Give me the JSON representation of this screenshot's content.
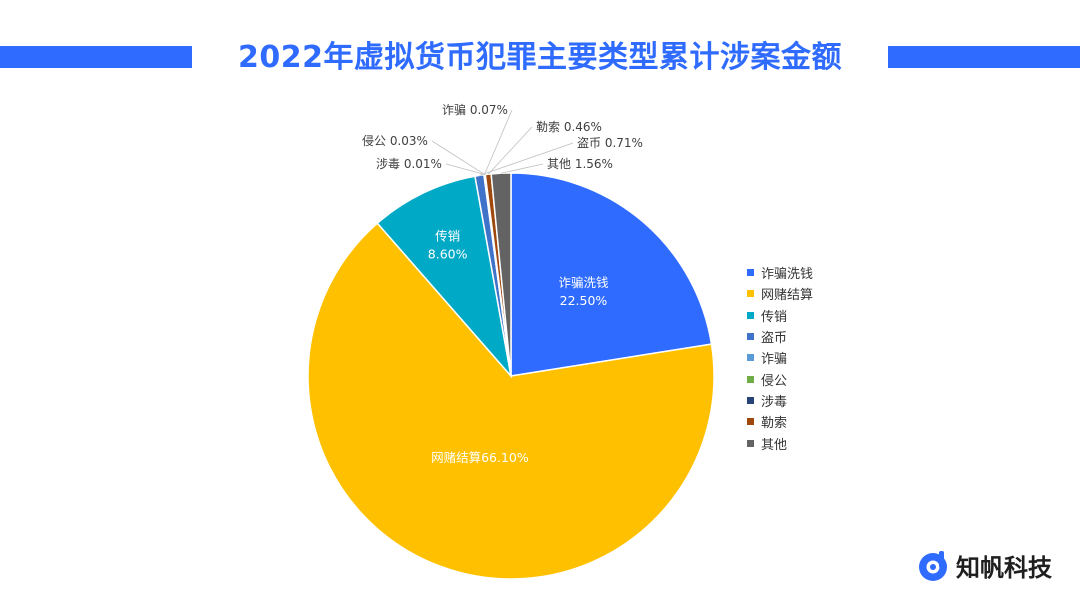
{
  "title": "2022年虚拟货币犯罪主要类型累计涉案金额",
  "brand": {
    "name": "知帆科技",
    "logo_icon": "zhifan-logo-icon",
    "accent": "#2f6bff"
  },
  "chart_data": {
    "type": "pie",
    "title": "2022年虚拟货币犯罪主要类型累计涉案金额",
    "unit": "%",
    "legend_position": "right",
    "slices": [
      {
        "name": "诈骗洗钱",
        "value": 22.5,
        "label": "22.50%",
        "color": "#2f6bff"
      },
      {
        "name": "网赌结算",
        "value": 66.1,
        "label": "网赌结算66.10%",
        "color": "#ffc000"
      },
      {
        "name": "传销",
        "value": 8.6,
        "label": "8.60%",
        "color": "#00a9c6"
      },
      {
        "name": "盗币",
        "value": 0.71,
        "label": "盗币  0.71%",
        "color": "#3e73c9"
      },
      {
        "name": "诈骗",
        "value": 0.07,
        "label": "诈骗 0.07%",
        "color": "#5b9bd5"
      },
      {
        "name": "侵公",
        "value": 0.03,
        "label": "侵公 0.03%",
        "color": "#70ad47"
      },
      {
        "name": "涉毒",
        "value": 0.01,
        "label": "涉毒 0.01%",
        "color": "#264478"
      },
      {
        "name": "勒索",
        "value": 0.46,
        "label": "勒索 0.46%",
        "color": "#9e480e"
      },
      {
        "name": "其他",
        "value": 1.56,
        "label": "其他 1.56%",
        "color": "#636363"
      }
    ]
  },
  "legend": [
    {
      "label": "诈骗洗钱",
      "color": "#2f6bff"
    },
    {
      "label": "网赌结算",
      "color": "#ffc000"
    },
    {
      "label": "传销",
      "color": "#00a9c6"
    },
    {
      "label": "盗币",
      "color": "#3e73c9"
    },
    {
      "label": "诈骗",
      "color": "#5b9bd5"
    },
    {
      "label": "侵公",
      "color": "#70ad47"
    },
    {
      "label": "涉毒",
      "color": "#264478"
    },
    {
      "label": "勒索",
      "color": "#9e480e"
    },
    {
      "label": "其他",
      "color": "#636363"
    }
  ]
}
